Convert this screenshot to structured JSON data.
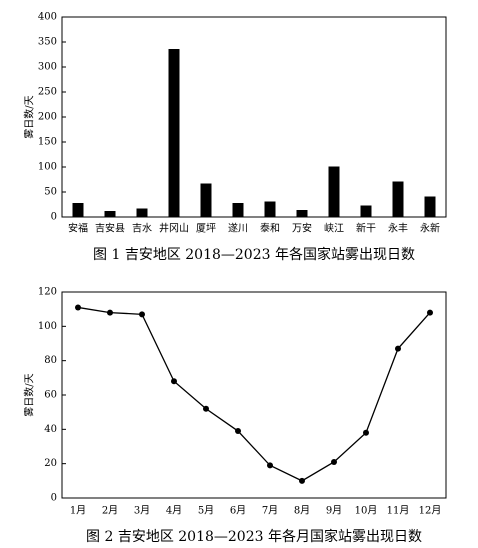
{
  "chart_data": [
    {
      "type": "bar",
      "title": "图 1 吉安地区 2018—2023 年各国家站雾出现日数",
      "y_label": "雾日数/天",
      "categories": [
        "安福",
        "吉安县",
        "吉水",
        "井冈山",
        "厦坪",
        "遂川",
        "泰和",
        "万安",
        "峡江",
        "新干",
        "永丰",
        "永新"
      ],
      "values": [
        28,
        12,
        17,
        336,
        67,
        28,
        31,
        14,
        101,
        23,
        71,
        41
      ],
      "color": "#000000",
      "ylim": [
        0,
        400
      ],
      "yticks": [
        0,
        50,
        100,
        150,
        200,
        250,
        300,
        350,
        400
      ]
    },
    {
      "type": "line",
      "title": "图 2 吉安地区 2018—2023 年各月国家站雾出现日数",
      "y_label": "雾日数/天",
      "categories": [
        "1月",
        "2月",
        "3月",
        "4月",
        "5月",
        "6月",
        "7月",
        "8月",
        "9月",
        "10月",
        "11月",
        "12月"
      ],
      "values": [
        111,
        108,
        107,
        68,
        52,
        39,
        19,
        10,
        21,
        38,
        87,
        108
      ],
      "color": "#000000",
      "ylim": [
        0,
        120
      ],
      "yticks": [
        0,
        20,
        40,
        60,
        80,
        100,
        120
      ]
    }
  ]
}
